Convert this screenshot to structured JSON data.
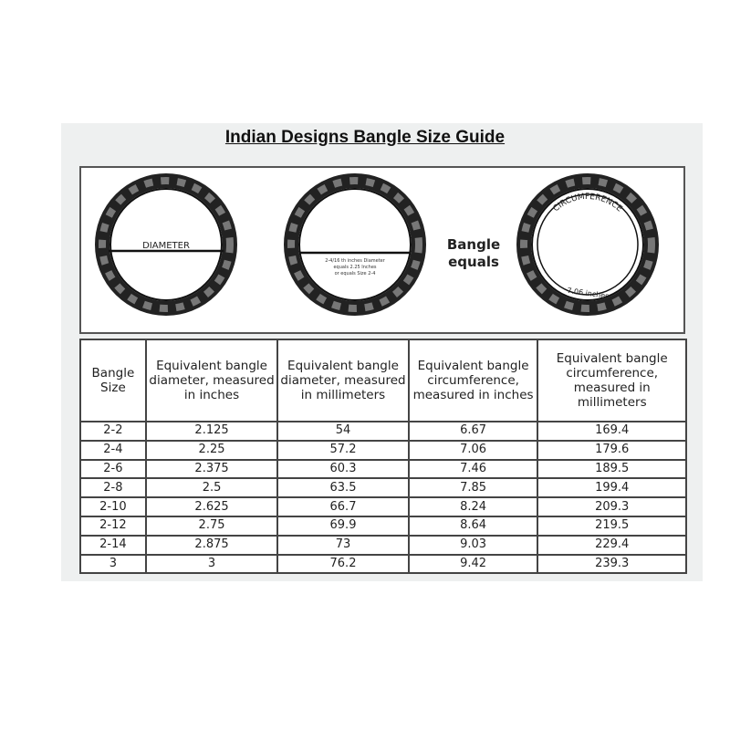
{
  "title": "Indian Designs Bangle Size Guide",
  "diagram": {
    "diameter_label": "DIAMETER",
    "middle_note": [
      "2-4/16 th inches Diameter",
      "equals 2.25 Inches",
      "or equals Size 2-4"
    ],
    "equals_label": [
      "Bangle",
      "equals"
    ],
    "circumference_label": "CIRCUMFERENCE",
    "circumference_value": "7.06 inches"
  },
  "table": {
    "headers": [
      "Bangle Size",
      "Equivalent bangle diameter, measured in inches",
      "Equivalent bangle diameter, measured in millimeters",
      "Equivalent bangle circumference, measured in inches",
      "Equivalent bangle circumference, measured in millimeters"
    ],
    "rows": [
      [
        "2-2",
        "2.125",
        "54",
        "6.67",
        "169.4"
      ],
      [
        "2-4",
        "2.25",
        "57.2",
        "7.06",
        "179.6"
      ],
      [
        "2-6",
        "2.375",
        "60.3",
        "7.46",
        "189.5"
      ],
      [
        "2-8",
        "2.5",
        "63.5",
        "7.85",
        "199.4"
      ],
      [
        "2-10",
        "2.625",
        "66.7",
        "8.24",
        "209.3"
      ],
      [
        "2-12",
        "2.75",
        "69.9",
        "8.64",
        "219.5"
      ],
      [
        "2-14",
        "2.875",
        "73",
        "9.03",
        "229.4"
      ],
      [
        "3",
        "3",
        "76.2",
        "9.42",
        "239.3"
      ]
    ]
  }
}
